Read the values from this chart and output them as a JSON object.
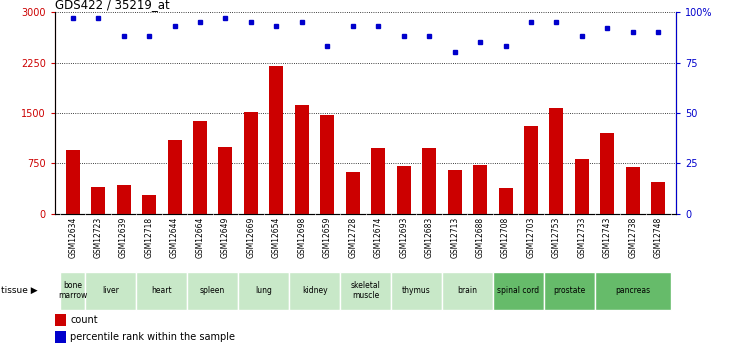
{
  "title": "GDS422 / 35219_at",
  "samples": [
    "GSM12634",
    "GSM12723",
    "GSM12639",
    "GSM12718",
    "GSM12644",
    "GSM12664",
    "GSM12649",
    "GSM12669",
    "GSM12654",
    "GSM12698",
    "GSM12659",
    "GSM12728",
    "GSM12674",
    "GSM12693",
    "GSM12683",
    "GSM12713",
    "GSM12688",
    "GSM12708",
    "GSM12703",
    "GSM12753",
    "GSM12733",
    "GSM12743",
    "GSM12738",
    "GSM12748"
  ],
  "counts": [
    950,
    400,
    430,
    280,
    1100,
    1380,
    1000,
    1510,
    2200,
    1620,
    1470,
    620,
    980,
    710,
    980,
    650,
    730,
    380,
    1300,
    1580,
    820,
    1200,
    700,
    470
  ],
  "percentiles": [
    97,
    97,
    88,
    88,
    93,
    95,
    97,
    95,
    93,
    95,
    83,
    93,
    93,
    88,
    88,
    80,
    85,
    83,
    95,
    95,
    88,
    92,
    90,
    90
  ],
  "tissues": [
    {
      "name": "bone\nmarrow",
      "start": 0,
      "end": 1,
      "color": "#c8e8c8"
    },
    {
      "name": "liver",
      "start": 1,
      "end": 3,
      "color": "#c8e8c8"
    },
    {
      "name": "heart",
      "start": 3,
      "end": 5,
      "color": "#c8e8c8"
    },
    {
      "name": "spleen",
      "start": 5,
      "end": 7,
      "color": "#c8e8c8"
    },
    {
      "name": "lung",
      "start": 7,
      "end": 9,
      "color": "#c8e8c8"
    },
    {
      "name": "kidney",
      "start": 9,
      "end": 11,
      "color": "#c8e8c8"
    },
    {
      "name": "skeletal\nmuscle",
      "start": 11,
      "end": 13,
      "color": "#c8e8c8"
    },
    {
      "name": "thymus",
      "start": 13,
      "end": 15,
      "color": "#c8e8c8"
    },
    {
      "name": "brain",
      "start": 15,
      "end": 17,
      "color": "#c8e8c8"
    },
    {
      "name": "spinal cord",
      "start": 17,
      "end": 19,
      "color": "#66bb6a"
    },
    {
      "name": "prostate",
      "start": 19,
      "end": 21,
      "color": "#66bb6a"
    },
    {
      "name": "pancreas",
      "start": 21,
      "end": 24,
      "color": "#66bb6a"
    }
  ],
  "bar_color": "#cc0000",
  "dot_color": "#0000cc",
  "ylim_left": [
    0,
    3000
  ],
  "ylim_right": [
    0,
    100
  ],
  "yticks_left": [
    0,
    750,
    1500,
    2250,
    3000
  ],
  "yticks_right": [
    0,
    25,
    50,
    75,
    100
  ],
  "gsm_bg_color": "#d3d3d3",
  "tissue_light_color": "#c8e8c8",
  "tissue_dark_color": "#66bb6a"
}
